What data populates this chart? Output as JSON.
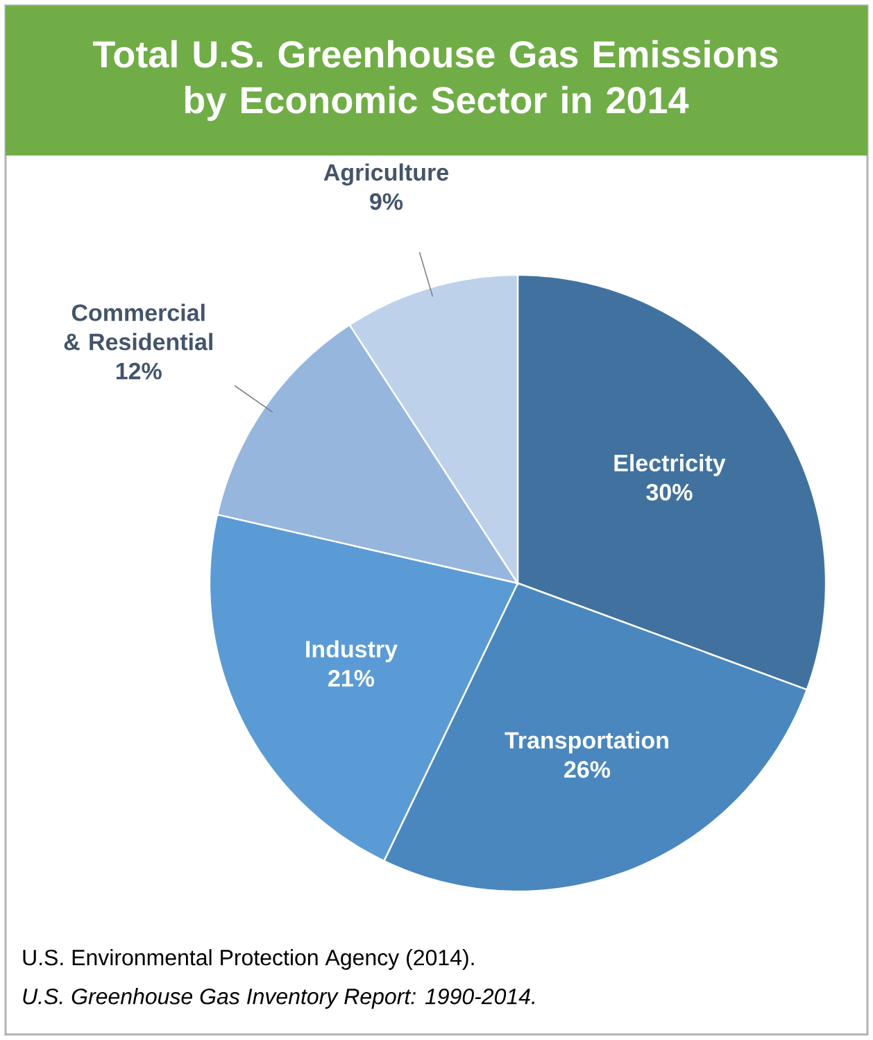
{
  "chart_data": {
    "type": "pie",
    "title": "Total U.S. Greenhouse Gas Emissions by Economic Sector in 2014",
    "categories": [
      "Electricity",
      "Transportation",
      "Industry",
      "Commercial & Residential",
      "Agriculture"
    ],
    "values": [
      30,
      26,
      21,
      12,
      9
    ],
    "value_labels": [
      "30%",
      "26%",
      "21%",
      "12%",
      "9%"
    ],
    "colors": [
      "#41729f",
      "#4a87be",
      "#5b9bd5",
      "#97b6de",
      "#bdd1eb"
    ],
    "annotations": [
      "U.S. Environmental Protection Agency (2014).",
      "U.S. Greenhouse Gas Inventory Report: 1990-2014."
    ]
  }
}
